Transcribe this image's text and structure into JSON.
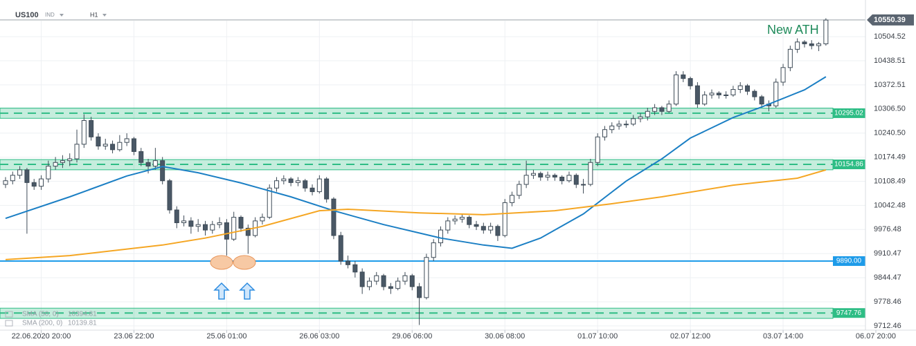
{
  "chart_data": {
    "type": "candlestick",
    "symbol": "US100",
    "market": "IND",
    "timeframe": "H1",
    "annotation": "New ATH",
    "last_price": {
      "value": 10550.39,
      "label": "10550.39"
    },
    "up_color": "#ffffff",
    "down_color": "#4a5866",
    "wick_color": "#3d4a56",
    "ohlc": [
      [
        10100,
        10120,
        10090,
        10110
      ],
      [
        10110,
        10135,
        10100,
        10125
      ],
      [
        10125,
        10150,
        10115,
        10140
      ],
      [
        10140,
        10145,
        9965,
        10105
      ],
      [
        10105,
        10115,
        10085,
        10095
      ],
      [
        10095,
        10125,
        10085,
        10115
      ],
      [
        10115,
        10165,
        10105,
        10150
      ],
      [
        10150,
        10175,
        10140,
        10160
      ],
      [
        10160,
        10180,
        10145,
        10165
      ],
      [
        10165,
        10185,
        10150,
        10170
      ],
      [
        10170,
        10250,
        10160,
        10210
      ],
      [
        10210,
        10292,
        10200,
        10275
      ],
      [
        10275,
        10285,
        10220,
        10230
      ],
      [
        10230,
        10240,
        10195,
        10205
      ],
      [
        10205,
        10225,
        10195,
        10210
      ],
      [
        10210,
        10220,
        10185,
        10195
      ],
      [
        10195,
        10235,
        10190,
        10215
      ],
      [
        10215,
        10240,
        10205,
        10225
      ],
      [
        10225,
        10230,
        10180,
        10190
      ],
      [
        10190,
        10200,
        10150,
        10160
      ],
      [
        10160,
        10170,
        10130,
        10150
      ],
      [
        10150,
        10200,
        10140,
        10165
      ],
      [
        10165,
        10175,
        10100,
        10110
      ],
      [
        10110,
        10115,
        10020,
        10030
      ],
      [
        10030,
        10040,
        9980,
        9995
      ],
      [
        9995,
        10015,
        9985,
        10000
      ],
      [
        10000,
        10010,
        9965,
        9985
      ],
      [
        9985,
        10005,
        9970,
        9990
      ],
      [
        9990,
        10000,
        9960,
        9975
      ],
      [
        9975,
        10000,
        9965,
        9990
      ],
      [
        9990,
        10010,
        9980,
        9995
      ],
      [
        9995,
        10005,
        9905,
        9950
      ],
      [
        9950,
        10025,
        9945,
        10010
      ],
      [
        10010,
        10015,
        9970,
        9980
      ],
      [
        9980,
        9990,
        9910,
        9960
      ],
      [
        9960,
        10010,
        9955,
        10000
      ],
      [
        10000,
        10020,
        9990,
        10010
      ],
      [
        10010,
        10100,
        10005,
        10090
      ],
      [
        10090,
        10120,
        10080,
        10110
      ],
      [
        10110,
        10125,
        10100,
        10115
      ],
      [
        10115,
        10120,
        10095,
        10105
      ],
      [
        10105,
        10120,
        10095,
        10110
      ],
      [
        10110,
        10115,
        10080,
        10090
      ],
      [
        10090,
        10100,
        10070,
        10080
      ],
      [
        10080,
        10125,
        10075,
        10115
      ],
      [
        10115,
        10120,
        10050,
        10060
      ],
      [
        10060,
        10065,
        9950,
        9960
      ],
      [
        9960,
        9970,
        9880,
        9890
      ],
      [
        9890,
        9905,
        9870,
        9880
      ],
      [
        9880,
        9890,
        9845,
        9860
      ],
      [
        9860,
        9870,
        9800,
        9820
      ],
      [
        9820,
        9845,
        9810,
        9835
      ],
      [
        9835,
        9860,
        9825,
        9850
      ],
      [
        9850,
        9855,
        9810,
        9820
      ],
      [
        9820,
        9830,
        9800,
        9815
      ],
      [
        9815,
        9845,
        9810,
        9835
      ],
      [
        9835,
        9860,
        9825,
        9850
      ],
      [
        9850,
        9855,
        9810,
        9820
      ],
      [
        9820,
        9830,
        9715,
        9790
      ],
      [
        9790,
        9910,
        9785,
        9900
      ],
      [
        9900,
        9950,
        9890,
        9940
      ],
      [
        9940,
        9985,
        9930,
        9975
      ],
      [
        9975,
        10010,
        9965,
        10000
      ],
      [
        10000,
        10015,
        9990,
        10005
      ],
      [
        10005,
        10020,
        9995,
        10010
      ],
      [
        10010,
        10015,
        9980,
        9990
      ],
      [
        9990,
        10000,
        9975,
        9985
      ],
      [
        9985,
        9995,
        9965,
        9975
      ],
      [
        9975,
        9995,
        9965,
        9985
      ],
      [
        9985,
        9990,
        9945,
        9960
      ],
      [
        9960,
        10060,
        9955,
        10050
      ],
      [
        10050,
        10080,
        10040,
        10070
      ],
      [
        10070,
        10110,
        10060,
        10100
      ],
      [
        10100,
        10165,
        10090,
        10125
      ],
      [
        10125,
        10140,
        10115,
        10130
      ],
      [
        10130,
        10135,
        10110,
        10120
      ],
      [
        10120,
        10135,
        10110,
        10125
      ],
      [
        10125,
        10130,
        10110,
        10120
      ],
      [
        10120,
        10125,
        10100,
        10110
      ],
      [
        10110,
        10135,
        10105,
        10125
      ],
      [
        10125,
        10130,
        10090,
        10100
      ],
      [
        10100,
        10115,
        10075,
        10100
      ],
      [
        10100,
        10170,
        10095,
        10160
      ],
      [
        10160,
        10240,
        10150,
        10230
      ],
      [
        10230,
        10260,
        10220,
        10250
      ],
      [
        10250,
        10270,
        10240,
        10260
      ],
      [
        10260,
        10275,
        10250,
        10265
      ],
      [
        10265,
        10275,
        10255,
        10265
      ],
      [
        10265,
        10290,
        10260,
        10280
      ],
      [
        10280,
        10295,
        10270,
        10285
      ],
      [
        10285,
        10310,
        10275,
        10300
      ],
      [
        10300,
        10320,
        10290,
        10310
      ],
      [
        10310,
        10315,
        10290,
        10300
      ],
      [
        10300,
        10330,
        10295,
        10320
      ],
      [
        10320,
        10410,
        10315,
        10400
      ],
      [
        10400,
        10410,
        10380,
        10390
      ],
      [
        10390,
        10395,
        10360,
        10370
      ],
      [
        10370,
        10380,
        10310,
        10320
      ],
      [
        10320,
        10355,
        10315,
        10345
      ],
      [
        10345,
        10360,
        10335,
        10350
      ],
      [
        10350,
        10355,
        10335,
        10345
      ],
      [
        10345,
        10355,
        10335,
        10345
      ],
      [
        10345,
        10370,
        10340,
        10360
      ],
      [
        10360,
        10380,
        10350,
        10370
      ],
      [
        10370,
        10375,
        10345,
        10355
      ],
      [
        10355,
        10360,
        10330,
        10340
      ],
      [
        10340,
        10345,
        10310,
        10320
      ],
      [
        10320,
        10330,
        10300,
        10315
      ],
      [
        10315,
        10390,
        10310,
        10380
      ],
      [
        10380,
        10430,
        10370,
        10420
      ],
      [
        10420,
        10480,
        10410,
        10470
      ],
      [
        10470,
        10500,
        10460,
        10490
      ],
      [
        10490,
        10495,
        10475,
        10485
      ],
      [
        10485,
        10495,
        10470,
        10480
      ],
      [
        10480,
        10490,
        10465,
        10485
      ],
      [
        10485,
        10555,
        10480,
        10550
      ]
    ],
    "series": [
      {
        "name": "SMA (50, 0)",
        "color": "#1b7fc4",
        "x": [
          0,
          9,
          17,
          22,
          27,
          33,
          40,
          46,
          53,
          61,
          67,
          71,
          75,
          81,
          87,
          92,
          96,
          102,
          106,
          112,
          115
        ],
        "values": [
          10007,
          10066,
          10123,
          10149,
          10132,
          10104,
          10066,
          10028,
          9990,
          9953,
          9934,
          9925,
          9953,
          10019,
          10109,
          10170,
          10227,
          10283,
          10312,
          10359,
          10394.81
        ]
      },
      {
        "name": "SMA (200, 0)",
        "color": "#f5a623",
        "x": [
          0,
          9,
          22,
          28,
          36,
          44,
          48,
          58,
          67,
          77,
          85,
          92,
          102,
          111,
          115
        ],
        "values": [
          9894,
          9905,
          9934,
          9953,
          9985,
          10028,
          10032,
          10022,
          10017,
          10028,
          10047,
          10066,
          10098,
          10117,
          10139.81
        ]
      }
    ],
    "levels": [
      {
        "value": 10295.02,
        "label": "10295.02",
        "zone": [
          10281,
          10309
        ],
        "color": "#2ebd85"
      },
      {
        "value": 10154.86,
        "label": "10154.86",
        "zone": [
          10140,
          10168
        ],
        "color": "#2ebd85"
      },
      {
        "value": 9890,
        "label": "9890.00",
        "color": "#1e9be9"
      },
      {
        "value": 9747.76,
        "label": "9747.76",
        "zone": [
          9733,
          9761
        ],
        "color": "#2ebd85"
      }
    ],
    "xlim": [
      -0.5,
      124
    ],
    "xticks": [
      {
        "value": 5,
        "label": "22.06.2020 20:00"
      },
      {
        "value": 18,
        "label": "23.06 22:00"
      },
      {
        "value": 31,
        "label": "25.06 01:00"
      },
      {
        "value": 44,
        "label": "26.06 03:00"
      },
      {
        "value": 57,
        "label": "29.06 06:00"
      },
      {
        "value": 70,
        "label": "30.06 08:00"
      },
      {
        "value": 83,
        "label": "01.07 10:00"
      },
      {
        "value": 96,
        "label": "02.07 12:00"
      },
      {
        "value": 109,
        "label": "03.07 14:00"
      },
      {
        "value": 122,
        "label": "06.07 20:00"
      }
    ],
    "ylim": [
      9682,
      10605
    ],
    "yticks": [
      10504.52,
      10438.51,
      10372.51,
      {
        "value": 10306.5,
        "label": "10306.50"
      },
      {
        "value": 10240.5,
        "label": "10240.50"
      },
      10174.49,
      10108.49,
      10042.48,
      9976.48,
      9910.47,
      9844.47,
      9778.46,
      9712.46
    ],
    "grid": true
  }
}
